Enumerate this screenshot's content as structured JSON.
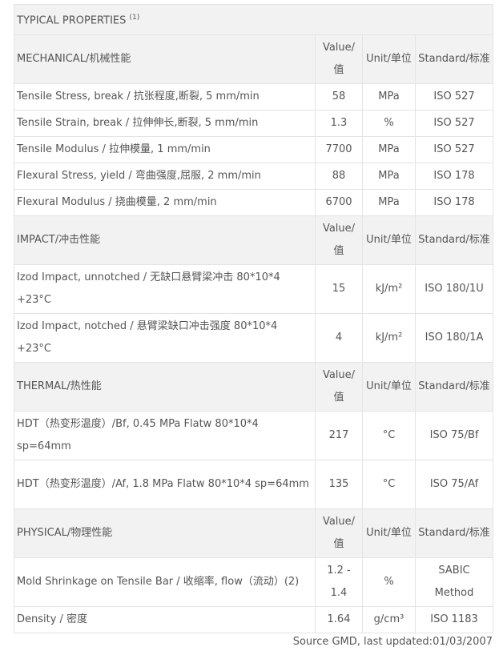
{
  "title": "TYPICAL PROPERTIES",
  "title_note": "(1)",
  "column_headers": {
    "value": "Value/值",
    "unit": "Unit/单位",
    "standard": "Standard/标准"
  },
  "sections": [
    {
      "name": "MECHANICAL/机械性能",
      "rows": [
        {
          "property": "Tensile Stress, break / 抗张程度,断裂, 5 mm/min",
          "value": "58",
          "unit": "MPa",
          "standard": "ISO 527"
        },
        {
          "property": "Tensile Strain, break / 拉伸伸长,断裂, 5 mm/min",
          "value": "1.3",
          "unit": "%",
          "standard": "ISO 527"
        },
        {
          "property": "Tensile Modulus / 拉伸模量, 1 mm/min",
          "value": "7700",
          "unit": "MPa",
          "standard": "ISO 527"
        },
        {
          "property": "Flexural Stress, yield / 弯曲强度,屈服, 2 mm/min",
          "value": "88",
          "unit": "MPa",
          "standard": "ISO 178"
        },
        {
          "property": "Flexural Modulus / 挠曲模量, 2 mm/min",
          "value": "6700",
          "unit": "MPa",
          "standard": "ISO 178"
        }
      ]
    },
    {
      "name": "IMPACT/冲击性能",
      "rows": [
        {
          "property": "Izod Impact, unnotched / 无缺口悬臂梁冲击 80*10*4 +23°C",
          "value": "15",
          "unit": "kJ/m²",
          "standard": "ISO 180/1U"
        },
        {
          "property": "Izod Impact, notched / 悬臂梁缺口冲击强度 80*10*4 +23°C",
          "value": "4",
          "unit": "kJ/m²",
          "standard": "ISO 180/1A"
        }
      ]
    },
    {
      "name": "THERMAL/热性能",
      "rows": [
        {
          "property": "HDT（热变形温度）/Bf, 0.45 MPa Flatw 80*10*4 sp=64mm",
          "value": "217",
          "unit": "°C",
          "standard": "ISO 75/Bf"
        },
        {
          "property": "HDT（热变形温度）/Af, 1.8 MPa Flatw 80*10*4 sp=64mm",
          "value": "135",
          "unit": "°C",
          "standard": "ISO 75/Af"
        }
      ]
    },
    {
      "name": "PHYSICAL/物理性能",
      "rows": [
        {
          "property": "Mold Shrinkage on Tensile Bar / 收缩率, flow（流动）(2)",
          "value": "1.2 - 1.4",
          "unit": "%",
          "standard": "SABIC Method"
        },
        {
          "property": "Density / 密度",
          "value": "1.64",
          "unit": "g/cm³",
          "standard": "ISO 1183"
        }
      ]
    }
  ],
  "source": "Source GMD, last updated:01/03/2007"
}
